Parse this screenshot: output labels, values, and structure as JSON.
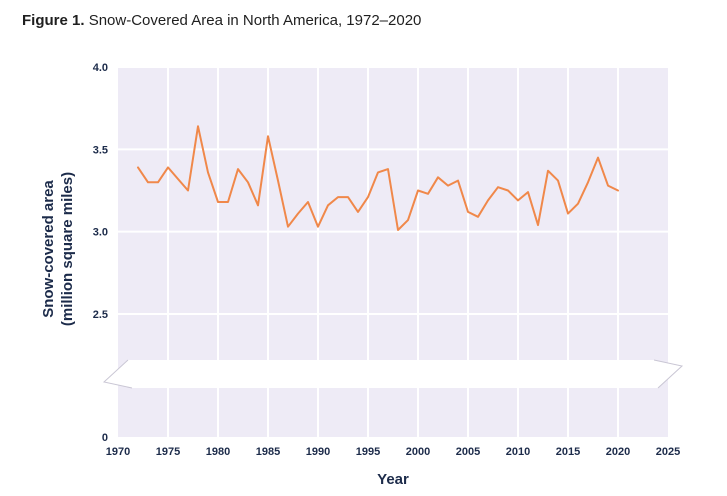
{
  "figure": {
    "label": "Figure 1.",
    "title": "Snow-Covered Area in North America, 1972–2020"
  },
  "chart_data": {
    "type": "line",
    "title": "Snow-Covered Area in North America, 1972–2020",
    "xlabel": "Year",
    "ylabel_line1": "Snow-covered area",
    "ylabel_line2": "(million square miles)",
    "xlim": [
      1970,
      2025
    ],
    "ylim": [
      0,
      4.0
    ],
    "axis_break": true,
    "grid": true,
    "x_ticks": [
      "1970",
      "1975",
      "1980",
      "1985",
      "1990",
      "1995",
      "2000",
      "2005",
      "2010",
      "2015",
      "2020",
      "2025"
    ],
    "y_ticks": [
      "0",
      "2.5",
      "3.0",
      "3.5",
      "4.0"
    ],
    "series": [
      {
        "color": "#f0884a",
        "x": [
          1972,
          1973,
          1974,
          1975,
          1976,
          1977,
          1978,
          1979,
          1980,
          1981,
          1982,
          1983,
          1984,
          1985,
          1986,
          1987,
          1988,
          1989,
          1990,
          1991,
          1992,
          1993,
          1994,
          1995,
          1996,
          1997,
          1998,
          1999,
          2000,
          2001,
          2002,
          2003,
          2004,
          2005,
          2006,
          2007,
          2008,
          2009,
          2010,
          2011,
          2012,
          2013,
          2014,
          2015,
          2016,
          2017,
          2018,
          2019,
          2020
        ],
        "values": [
          3.39,
          3.3,
          3.3,
          3.39,
          3.32,
          3.25,
          3.64,
          3.36,
          3.18,
          3.18,
          3.38,
          3.3,
          3.16,
          3.58,
          3.31,
          3.03,
          3.11,
          3.18,
          3.03,
          3.16,
          3.21,
          3.21,
          3.12,
          3.21,
          3.36,
          3.38,
          3.01,
          3.07,
          3.25,
          3.23,
          3.33,
          3.28,
          3.31,
          3.12,
          3.09,
          3.19,
          3.27,
          3.25,
          3.19,
          3.24,
          3.04,
          3.37,
          3.31,
          3.11,
          3.17,
          3.3,
          3.45,
          3.28,
          3.25
        ]
      }
    ],
    "colors": {
      "plot_background": "#eeebf6",
      "grid": "#ffffff",
      "text": "#1c2b4a"
    }
  }
}
